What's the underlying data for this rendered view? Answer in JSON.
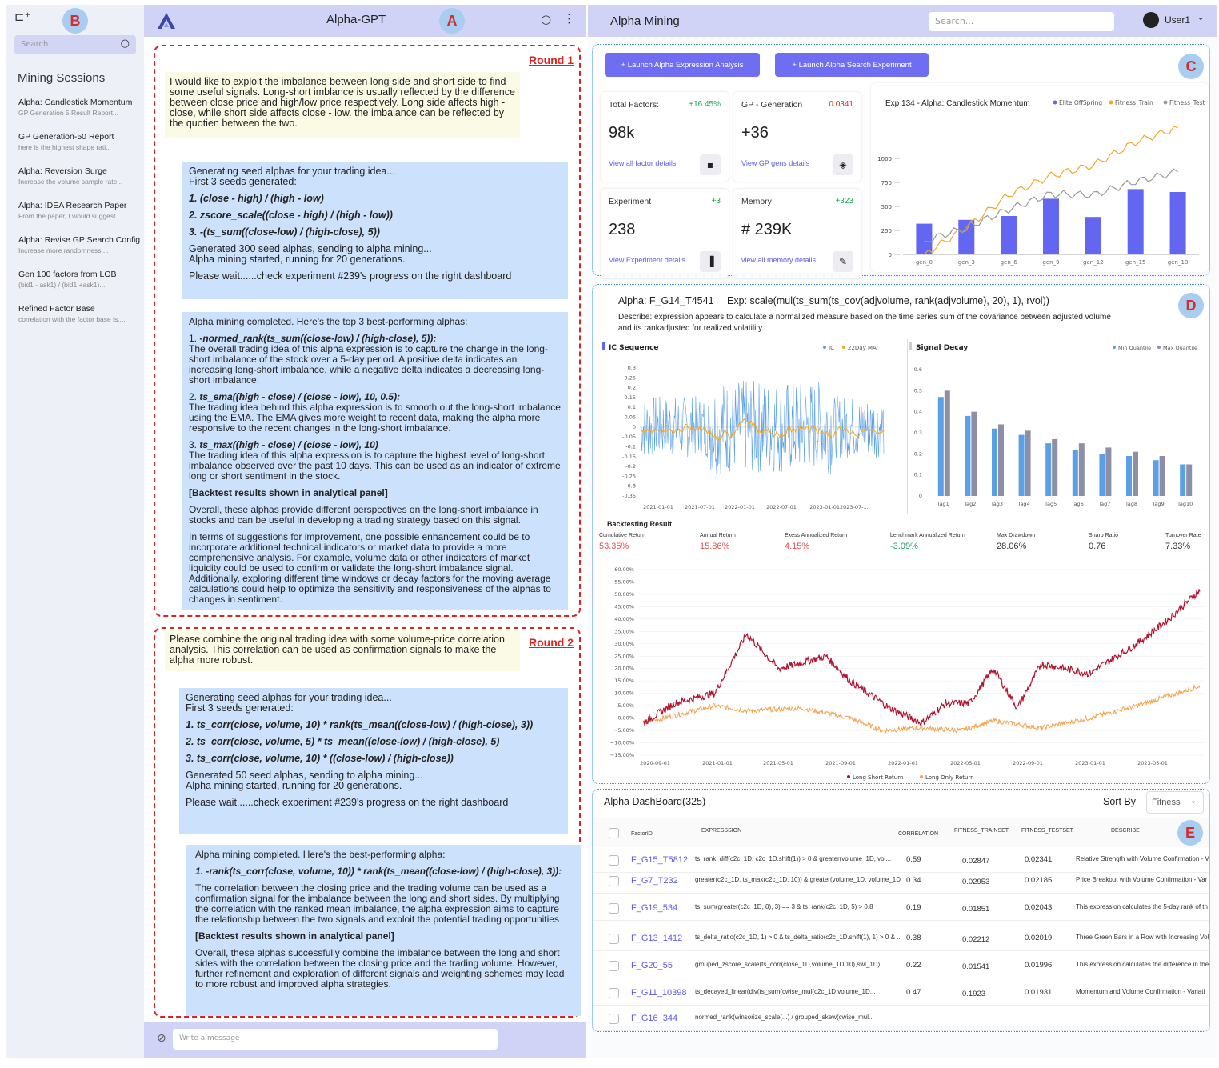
{
  "badges": {
    "a": "A",
    "b": "B",
    "c": "C",
    "d": "D",
    "e": "E"
  },
  "sidebar": {
    "search_placeholder": "Search",
    "heading": "Mining Sessions",
    "sessions": [
      {
        "title": "Alpha: Candlestick Momentum",
        "sub": "GP Generation 5 Result Report..."
      },
      {
        "title": "GP Generation-50 Report",
        "sub": "here is the highest shape rati.."
      },
      {
        "title": "Alpha: Reversion Surge",
        "sub": "Increase the volume sample rate..."
      },
      {
        "title": "Alpha: IDEA Research Paper",
        "sub": "From the paper, I would suggest...."
      },
      {
        "title": "Alpha: Revise GP Search Config",
        "sub": "Increase more randomness...."
      },
      {
        "title": "Gen 100 factors from LOB",
        "sub": "(bid1 - ask1) / (bid1 +ask1)..."
      },
      {
        "title": "Refined Factor Base",
        "sub": "correlation with the factor base is...."
      }
    ]
  },
  "chat": {
    "title": "Alpha-GPT",
    "round1_label": "Round 1",
    "round2_label": "Round 2",
    "r1_user": "I would like to exploit the imbalance between long side and short side to find some useful signals. Long-short imblance is usually reflected by the difference between close price and high/low price respectively. Long side affects high - close, while short side affects close - low. the imbalance can be reflected by the quotien between the two.",
    "r1_bot1": {
      "intro1": "Generating seed alphas for your trading idea...",
      "intro2": "First 3 seeds generated:",
      "s1": "1. (close - high) / (high - low)",
      "s2": "2. zscore_scale((close - high) / (high - low))",
      "s3": "3. -(ts_sum((close-low) / (high-close), 5))",
      "gen1": "Generated 300 seed alphas, sending to alpha mining...",
      "gen2": "Alpha mining started, running for 20 generations.",
      "wait": "Please wait......check experiment #239's progress on the right dashboard"
    },
    "r1_bot2": {
      "intro": "Alpha mining completed. Here's the top 3 best-performing alphas:",
      "a1_num": "1.",
      "a1": "-normed_rank(ts_sum((close-low) / (high-close), 5)):",
      "a1_desc": "The overall trading idea of this alpha expression is to capture the change in the long-short imbalance of the stock over a 5-day period. A positive delta indicates an increasing long-short imbalance, while a negative delta indicates a decreasing long-short imbalance.",
      "a2_num": "2.",
      "a2": "ts_ema((high - close) / (close - low), 10, 0.5):",
      "a2_desc": "The trading idea behind this alpha expression is to smooth out the long-short imbalance using the EMA. The EMA gives more weight to recent data, making the alpha more responsive to the recent changes in the long-short imbalance.",
      "a3_num": "3.",
      "a3": "ts_max((high - close) / (close - low), 10)",
      "a3_desc": "The trading idea of this alpha expression is to capture the highest level of long-short imbalance observed over the past 10 days. This can be used as an indicator of extreme long or short sentiment in the stock.",
      "backtest": "[Backtest results shown in analytical panel]",
      "overall": "Overall, these alphas provide different perspectives on the long-short imbalance in stocks and can be useful in developing a trading strategy based on this signal.",
      "suggest": "In terms of suggestions for improvement, one possible enhancement could be to incorporate additional technical indicators or market data to provide a more comprehensive analysis. For example, volume data or other indicators of market liquidity could be used to confirm or validate the long-short imbalance signal. Additionally, exploring different time windows or decay factors for the moving average calculations could help to optimize the sensitivity and responsiveness of the alphas to changes in sentiment."
    },
    "r2_user": "Please combine the original trading idea with some volume-price correlation analysis. This correlation can be used as confirmation signals to make the alpha more robust.",
    "r2_bot1": {
      "intro1": "Generating seed alphas for your trading idea...",
      "intro2": "First 3 seeds generated:",
      "s1": "1. ts_corr(close, volume, 10) * rank(ts_mean((close-low) / (high-close), 3))",
      "s2": "2. ts_corr(close, volume, 5) * ts_mean((close-low) / (high-close), 5)",
      "s3": "3. ts_corr(close, volume, 10) * ((close-low) / (high-close))",
      "gen1": "Generated 50 seed alphas, sending to alpha mining...",
      "gen2": "Alpha mining started, running for 20 generations.",
      "wait": "Please wait......check experiment #239's progress on the right dashboard"
    },
    "r2_bot2": {
      "intro": "Alpha mining completed. Here's the best-performing alpha:",
      "a1": "1. -rank(ts_corr(close, volume, 10)) * rank(ts_mean((close-low) / (high-close), 3)):",
      "desc": "The correlation between the closing price and the trading volume can be used as a confirmation signal for the imbalance between the long and short sides. By multiplying the correlation with the ranked mean imbalance, the alpha expression aims to capture the relationship between the two signals and exploit the potential trading opportunities",
      "backtest": "[Backtest results shown in analytical panel]",
      "overall": "Overall, these alphas successfully combine the imbalance between the long and short sides with the correlation between the closing price and the trading volume. However, further refinement and exploration of different signals and weighting schemes may lead to more robust and improved alpha strategies."
    },
    "input_placeholder": "Write a message"
  },
  "right": {
    "title": "Alpha Mining",
    "search_placeholder": "Search...",
    "user": "User1",
    "btn1": "+ Launch Alpha Expression Analysis",
    "btn2": "+ Launch Alpha Search Experiment",
    "cards": [
      {
        "title": "Total Factors:",
        "delta": "+16.45%",
        "value": "98k",
        "link": "View all factor details",
        "delta_color": "#1aa85a"
      },
      {
        "title": "GP - Generation",
        "delta": "0.0341",
        "value": "+36",
        "link": "View GP gens details",
        "delta_color": "#e02424"
      },
      {
        "title": "Experiment",
        "delta": "+3",
        "value": "238",
        "link": "View Experiment details",
        "delta_color": "#1aa85a"
      },
      {
        "title": "Memory",
        "delta": "+323",
        "value": "# 239K",
        "link": "view all memory details",
        "delta_color": "#1aa85a"
      }
    ],
    "exp_title": "Exp 134 - Alpha: Candlestick Momentum",
    "alpha_title": "Alpha: F_G14_T4541",
    "alpha_exp": "Exp:  scale(mul(ts_sum(ts_cov(adjvolume, rank(adjvolume), 20), 1), rvol))",
    "alpha_desc": "Describe:  expression appears to calculate a normalized measure based on the time series sum of the covariance between adjusted volume and its rankadjusted for realized volatility.",
    "ic_title": "IC Sequence",
    "decay_title": "Signal Decay",
    "bt_title": "Backtesting Result",
    "bt_metrics": [
      {
        "label": "Cumulative Return",
        "value": "53.35%",
        "color": "#e05050"
      },
      {
        "label": "Annual Return",
        "value": "15.86%",
        "color": "#e05050"
      },
      {
        "label": "Exess Annualized Return",
        "value": "4.15%",
        "color": "#e05050"
      },
      {
        "label": "benchmark Annualized Return",
        "value": "-3.09%",
        "color": "#1aa85a"
      },
      {
        "label": "Max Drawdown",
        "value": "28.06%",
        "color": "#333"
      },
      {
        "label": "Sharp Ratio",
        "value": "0.76",
        "color": "#333"
      },
      {
        "label": "Turnover Rate",
        "value": "7.33%",
        "color": "#333"
      }
    ],
    "dash_title": "Alpha DashBoard(325)",
    "sort_label": "Sort By",
    "sort_value": "Fitness",
    "table_headers": {
      "id": "FactorID",
      "expr": "EXPRESSSION",
      "corr": "CORRELATION",
      "fit_train": "FITNESS_TRAINSET",
      "fit_test": "FITNESS_TESTSET",
      "desc": "DESCRIBE"
    },
    "rows": [
      {
        "id": "F_G15_T5812",
        "expr": "ts_rank_diff(c2c_1D, c2c_1D.shift(1)) > 0 & greater(volume_1D, vol...",
        "corr": "0.59",
        "train": "0.02847",
        "test": "0.02341",
        "desc": "Relative Strength with Volume Confirmation - V"
      },
      {
        "id": "F_G7_T232",
        "expr": "greater(c2c_1D, ts_max(c2c_1D, 10)) & greater(volume_1D, volume_1D...",
        "corr": "0.34",
        "train": "0.02953",
        "test": "0.02185",
        "desc": "Price Breakout with Volume Confirmation - Var"
      },
      {
        "id": "F_G19_534",
        "expr": "ts_sum(greater(c2c_1D, 0), 3) == 3 & ts_rank(c2c_1D, 5) > 0.8",
        "corr": "0.19",
        "train": "0.01851",
        "test": "0.02043",
        "desc": "This expression calculates the 5-day rank of th"
      },
      {
        "id": "F_G13_1412",
        "expr": "ts_delta_ratio(c2c_1D, 1) > 0 & ts_delta_ratio(c2c_1D.shift(1), 1) > 0 & ...",
        "corr": "0.38",
        "train": "0.02212",
        "test": "0.02019",
        "desc": "Three Green Bars in a Row with Increasing Volu"
      },
      {
        "id": "F_G20_55",
        "expr": "grouped_zscore_scale(ts_corr(close_1D,volume_1D,10),swl_1D)",
        "corr": "0.22",
        "train": "0.01541",
        "test": "0.01996",
        "desc": "This expression calculates the difference in the"
      },
      {
        "id": "F_G11_10398",
        "expr": "ts_decayed_linear(div(ts_sum(cwise_mul(c2c_1D,volume_1D...",
        "corr": "0.47",
        "train": "0.1923",
        "test": "0.01931",
        "desc": "Momentum and Volume Confirmation - Variati"
      },
      {
        "id": "F_G16_344",
        "expr": "normed_rank(winsorize_scale(...) / grouped_skew(cwise_mul...",
        "corr": "",
        "train": "",
        "test": "",
        "desc": ""
      }
    ]
  },
  "chart_data": [
    {
      "type": "bar",
      "title": "Exp 134 - Alpha: Candlestick Momentum",
      "categories": [
        "gen_0",
        "gen_3",
        "gen_6",
        "gen_9",
        "gen_12",
        "gen_15",
        "gen_18"
      ],
      "series": [
        {
          "name": "Elite OffSpring",
          "type": "bar",
          "values": [
            320,
            360,
            400,
            580,
            390,
            680,
            650
          ]
        },
        {
          "name": "Fitness_Train",
          "type": "line",
          "values": [
            0,
            280,
            620,
            820,
            930,
            1170,
            1320
          ]
        },
        {
          "name": "Fitness_Test",
          "type": "line",
          "values": [
            140,
            280,
            470,
            630,
            620,
            760,
            860
          ]
        }
      ],
      "yticks": [
        0,
        250,
        500,
        750,
        1000
      ],
      "ylim": [
        0,
        1400
      ],
      "legend": "top"
    },
    {
      "type": "line",
      "title": "IC Sequence",
      "series": [
        {
          "name": "IC"
        },
        {
          "name": "22Day MA"
        }
      ],
      "yticks": [
        0.3,
        0.25,
        0.2,
        0.15,
        0.1,
        0.05,
        0,
        -0.05,
        -0.1,
        -0.15,
        -0.2,
        -0.25,
        -0.3,
        -0.35
      ],
      "ylim": [
        -0.35,
        0.3
      ],
      "xticks": [
        "2021-01-01",
        "2021-07-01",
        "2022-01-01",
        "2022-07-01",
        "2023-01-012023-07-..."
      ]
    },
    {
      "type": "bar",
      "title": "Signal Decay",
      "categories": [
        "lag1",
        "lag2",
        "lag3",
        "lag4",
        "lag5",
        "lag6",
        "lag7",
        "lag8",
        "lag9",
        "lag10"
      ],
      "series": [
        {
          "name": "Min Quantile",
          "values": [
            0.47,
            0.38,
            0.32,
            0.29,
            0.25,
            0.22,
            0.2,
            0.19,
            0.17,
            0.15
          ]
        },
        {
          "name": "Max Quantile",
          "values": [
            0.5,
            0.4,
            0.34,
            0.31,
            0.27,
            0.25,
            0.23,
            0.21,
            0.19,
            0.15
          ]
        }
      ],
      "yticks": [
        0,
        0.1,
        0.2,
        0.3,
        0.4,
        0.5,
        0.6
      ],
      "ylim": [
        0,
        0.6
      ]
    },
    {
      "type": "line",
      "title": "Backtesting Result",
      "series": [
        {
          "name": "Long Short Return"
        },
        {
          "name": "Long Only Return"
        }
      ],
      "yticks": [
        "60.00%",
        "55.00%",
        "50.00%",
        "45.00%",
        "40.00%",
        "35.00%",
        "30.00%",
        "25.00%",
        "20.00%",
        "15.00%",
        "10.00%",
        "5.00%",
        "0.00%",
        "−5.00%",
        "−10.00%",
        "−15.00%"
      ],
      "ylim": [
        -15,
        60
      ],
      "xticks": [
        "2020-09-01",
        "2021-01-01",
        "2021-05-01",
        "2021-09-01",
        "2022-01-01",
        "2022-05-01",
        "2022-09-01",
        "2023-01-01",
        "2023-05-01"
      ]
    }
  ]
}
